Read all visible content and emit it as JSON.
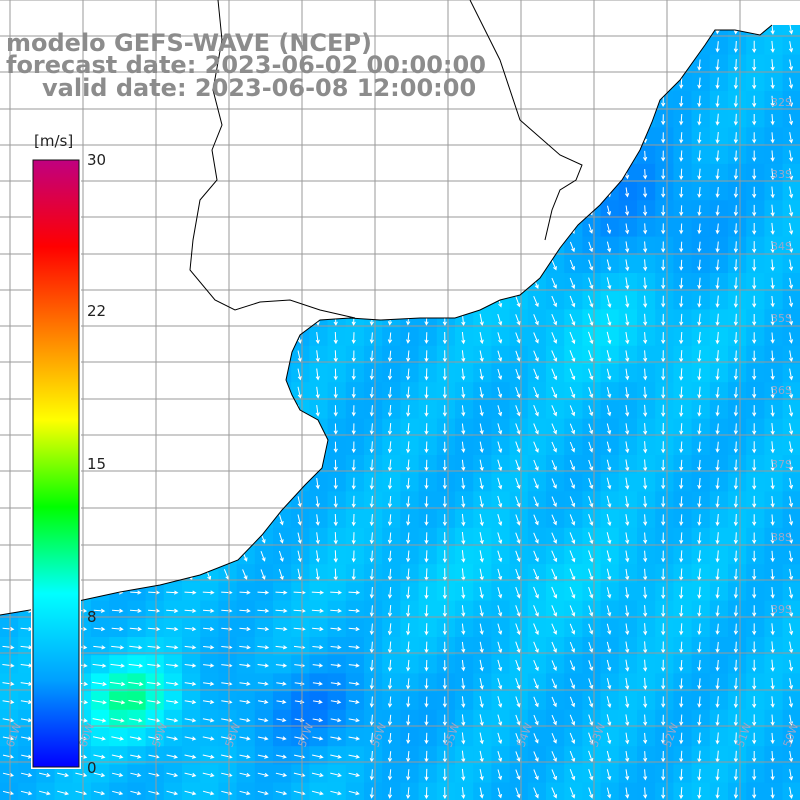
{
  "title": {
    "line1": "modelo GEFS-WAVE (NCEP)",
    "line2": "forecast date: 2023-06-02 00:00:00",
    "line3": "valid date: 2023-06-08 12:00:00"
  },
  "colorbar": {
    "unit": "[m/s]",
    "ticks": [
      "30",
      "22",
      "15",
      "8",
      "0"
    ],
    "tick_values": [
      30,
      22,
      15,
      8,
      0
    ],
    "range": [
      0,
      30
    ],
    "colors": [
      "#0000ff",
      "#00a0ff",
      "#00ffff",
      "#00ff00",
      "#ffff00",
      "#ff8000",
      "#ff0000",
      "#c00080"
    ]
  },
  "lat_labels": [
    "32S",
    "33S",
    "34S",
    "35S",
    "36S",
    "37S",
    "38S",
    "39S"
  ],
  "lon_labels": [
    "61W",
    "60W",
    "59W",
    "58W",
    "57W",
    "56W",
    "55W",
    "54W",
    "53W",
    "52W",
    "51W",
    "50W"
  ],
  "map": {
    "land_color": "#ffffff",
    "coast_color": "#000000",
    "grid_color": "#9a9a9a",
    "arrow_color": "#ffffff",
    "variable": "wind speed",
    "arrow_direction": "mostly southward"
  }
}
